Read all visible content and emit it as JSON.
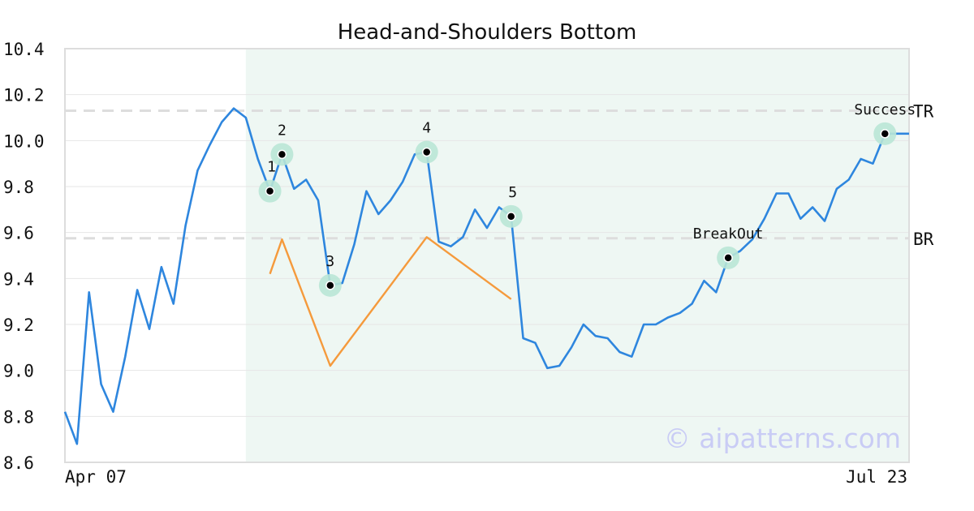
{
  "chart_data": {
    "type": "line",
    "title": "Head-and-Shoulders Bottom",
    "xlabel": "",
    "ylabel": "",
    "ylim": [
      8.6,
      10.4
    ],
    "yticks": [
      "8.6",
      "8.8",
      "9.0",
      "9.2",
      "9.4",
      "9.6",
      "9.8",
      "10.0",
      "10.2",
      "10.4"
    ],
    "x_tick_labels": [
      "Apr 07",
      "Jul 23"
    ],
    "grid": true,
    "series": [
      {
        "color": "#2e86de",
        "values": [
          8.82,
          8.68,
          9.34,
          8.94,
          8.82,
          9.06,
          9.35,
          9.18,
          9.45,
          9.29,
          9.63,
          9.87,
          9.98,
          10.08,
          10.14,
          10.1,
          9.92,
          9.78,
          9.94,
          9.79,
          9.83,
          9.74,
          9.37,
          9.38,
          9.55,
          9.78,
          9.68,
          9.74,
          9.82,
          9.94,
          9.95,
          9.56,
          9.54,
          9.58,
          9.7,
          9.62,
          9.71,
          9.67,
          9.14,
          9.12,
          9.01,
          9.02,
          9.1,
          9.2,
          9.15,
          9.14,
          9.08,
          9.06,
          9.2,
          9.2,
          9.23,
          9.25,
          9.29,
          9.39,
          9.34,
          9.49,
          9.52,
          9.57,
          9.66,
          9.77,
          9.77,
          9.66,
          9.71,
          9.65,
          9.79,
          9.83,
          9.92,
          9.9,
          10.03,
          10.03,
          10.03
        ]
      },
      {
        "color": "#f59a3c",
        "points": [
          [
            17,
            9.42
          ],
          [
            18,
            9.57
          ],
          [
            22,
            9.02
          ],
          [
            30,
            9.58
          ],
          [
            37,
            9.31
          ]
        ]
      }
    ],
    "pattern_points": [
      {
        "label": "1",
        "index": 17,
        "value": 9.78
      },
      {
        "label": "2",
        "index": 18,
        "value": 9.94
      },
      {
        "label": "3",
        "index": 22,
        "value": 9.37
      },
      {
        "label": "4",
        "index": 30,
        "value": 9.95
      },
      {
        "label": "5",
        "index": 37,
        "value": 9.67
      },
      {
        "label": "BreakOut",
        "index": 55,
        "value": 9.49
      },
      {
        "label": "Success",
        "index": 68,
        "value": 10.03
      }
    ],
    "levels": [
      {
        "label": "TR",
        "value": 10.13
      },
      {
        "label": "BR",
        "value": 9.575
      }
    ],
    "pattern_region": {
      "start_index": 15,
      "end_index": 70
    },
    "colors": {
      "line": "#2e86de",
      "pattern_line": "#f59a3c",
      "region": "#eef7f3",
      "marker_halo": "#b9e6d6",
      "level_line": "#dddddd"
    }
  },
  "watermark": "© aipatterns.com"
}
